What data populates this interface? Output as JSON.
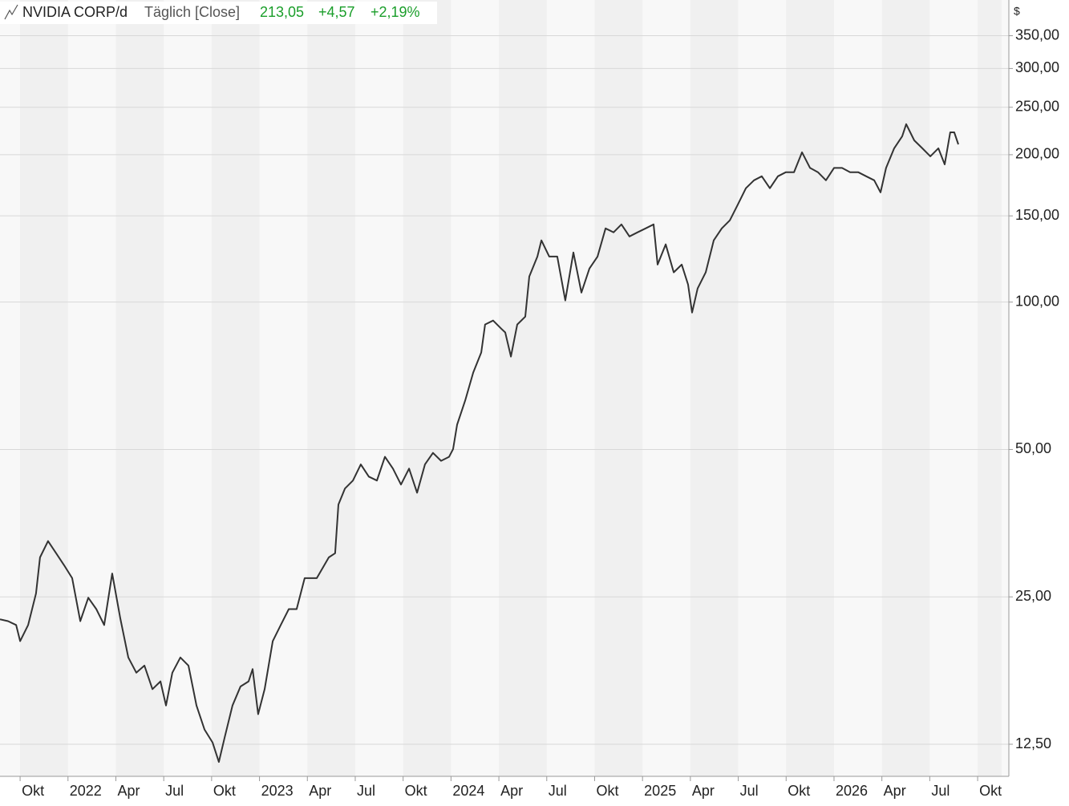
{
  "chart_data": {
    "type": "line",
    "title": "NVIDIA CORP/d",
    "subtitle": "Täglich [Close]",
    "last_close": "213,05",
    "change": "+4,57",
    "change_pct": "+2,19%",
    "y_unit": "$",
    "log_scale": true,
    "grid": true,
    "color": "#333333",
    "change_color": "#1a9e2a",
    "x": [
      2021.645,
      2021.687,
      2021.729,
      2021.75,
      2021.792,
      2021.833,
      2021.854,
      2021.896,
      2021.938,
      2021.98,
      2022.022,
      2022.064,
      2022.106,
      2022.148,
      2022.189,
      2022.231,
      2022.273,
      2022.315,
      2022.357,
      2022.399,
      2022.441,
      2022.483,
      2022.512,
      2022.545,
      2022.587,
      2022.629,
      2022.671,
      2022.713,
      2022.755,
      2022.788,
      2022.818,
      2022.859,
      2022.901,
      2022.943,
      2022.964,
      2022.993,
      2023.027,
      2023.069,
      2023.111,
      2023.153,
      2023.194,
      2023.236,
      2023.299,
      2023.362,
      2023.395,
      2023.412,
      2023.446,
      2023.488,
      2023.529,
      2023.571,
      2023.613,
      2023.655,
      2023.697,
      2023.739,
      2023.781,
      2023.823,
      2023.864,
      2023.906,
      2023.948,
      2023.99,
      2024.011,
      2024.032,
      2024.074,
      2024.116,
      2024.158,
      2024.178,
      2024.22,
      2024.262,
      2024.283,
      2024.313,
      2024.346,
      2024.388,
      2024.409,
      2024.451,
      2024.472,
      2024.513,
      2024.555,
      2024.597,
      2024.639,
      2024.681,
      2024.723,
      2024.765,
      2024.807,
      2024.849,
      2024.89,
      2024.932,
      2024.974,
      2025.016,
      2025.058,
      2025.079,
      2025.121,
      2025.163,
      2025.205,
      2025.238,
      2025.259,
      2025.288,
      2025.33,
      2025.372,
      2025.414,
      2025.456,
      2025.498,
      2025.54,
      2025.582,
      2025.623,
      2025.665,
      2025.707,
      2025.749,
      2025.791,
      2025.833,
      2025.875,
      2025.916,
      2025.958,
      2026.0,
      2026.042,
      2026.084,
      2026.126,
      2026.168,
      2026.21,
      2026.243,
      2026.272,
      2026.314,
      2026.356,
      2026.377,
      2026.419,
      2026.461,
      2026.503,
      2026.545,
      2026.578,
      2026.607,
      2026.628,
      2026.649
    ],
    "values": [
      22.5,
      22.3,
      21.9,
      20.3,
      21.9,
      25.4,
      30.1,
      32.5,
      30.7,
      29.0,
      27.3,
      22.3,
      24.9,
      23.6,
      21.9,
      27.9,
      22.6,
      18.8,
      17.5,
      18.1,
      16.2,
      16.8,
      15.0,
      17.5,
      18.8,
      18.1,
      15.0,
      13.4,
      12.6,
      11.5,
      12.9,
      15.0,
      16.4,
      16.8,
      17.8,
      14.4,
      16.2,
      20.3,
      21.9,
      23.6,
      23.6,
      27.3,
      27.3,
      30.1,
      30.7,
      38.6,
      41.6,
      43.2,
      46.6,
      44.0,
      43.2,
      48.3,
      45.7,
      42.4,
      45.7,
      40.8,
      46.6,
      49.2,
      47.4,
      48.3,
      50.1,
      56.2,
      62.9,
      71.8,
      78.9,
      90.0,
      91.7,
      88.3,
      86.7,
      77.4,
      90.0,
      93.4,
      112.8,
      123.9,
      133.7,
      123.9,
      123.9,
      100.8,
      126.3,
      104.6,
      117.1,
      123.9,
      141.4,
      138.8,
      144.1,
      136.2,
      138.8,
      141.4,
      144.1,
      119.3,
      131.2,
      115.0,
      119.3,
      108.6,
      95.2,
      106.6,
      115.0,
      133.7,
      141.4,
      146.9,
      158.3,
      170.8,
      177.3,
      180.7,
      170.8,
      180.7,
      184.2,
      184.2,
      202.3,
      187.9,
      184.2,
      177.3,
      187.9,
      187.9,
      184.2,
      184.2,
      180.7,
      177.3,
      167.5,
      187.9,
      206.1,
      218.1,
      230.9,
      214.0,
      206.1,
      198.5,
      206.1,
      191.1,
      222.2,
      222.2,
      210.0
    ],
    "xlim": [
      2021.645,
      2026.913
    ],
    "xticks": [
      {
        "value": 2021.75,
        "label": "Okt"
      },
      2022,
      {
        "value": 2022.25,
        "label": "Apr"
      },
      {
        "value": 2022.5,
        "label": "Jul"
      },
      {
        "value": 2022.75,
        "label": "Okt"
      },
      2023,
      {
        "value": 2023.25,
        "label": "Apr"
      },
      {
        "value": 2023.5,
        "label": "Jul"
      },
      {
        "value": 2023.75,
        "label": "Okt"
      },
      2024,
      {
        "value": 2024.25,
        "label": "Apr"
      },
      {
        "value": 2024.5,
        "label": "Jul"
      },
      {
        "value": 2024.75,
        "label": "Okt"
      },
      2025,
      {
        "value": 2025.25,
        "label": "Apr"
      },
      {
        "value": 2025.5,
        "label": "Jul"
      },
      {
        "value": 2025.75,
        "label": "Okt"
      },
      2026,
      {
        "value": 2026.25,
        "label": "Apr"
      },
      {
        "value": 2026.5,
        "label": "Jul"
      },
      {
        "value": 2026.75,
        "label": "Okt"
      }
    ],
    "ylim": [
      10.75,
      414
    ],
    "yticks": [
      {
        "value": 12.5,
        "label": "12,50"
      },
      {
        "value": 25,
        "label": "25,00"
      },
      {
        "value": 50,
        "label": "50,00"
      },
      {
        "value": 100,
        "label": "100,00"
      },
      {
        "value": 150,
        "label": "150,00"
      },
      {
        "value": 200,
        "label": "200,00"
      },
      {
        "value": 250,
        "label": "250,00"
      },
      {
        "value": 300,
        "label": "300,00"
      },
      {
        "value": 350,
        "label": "350,00"
      }
    ]
  }
}
